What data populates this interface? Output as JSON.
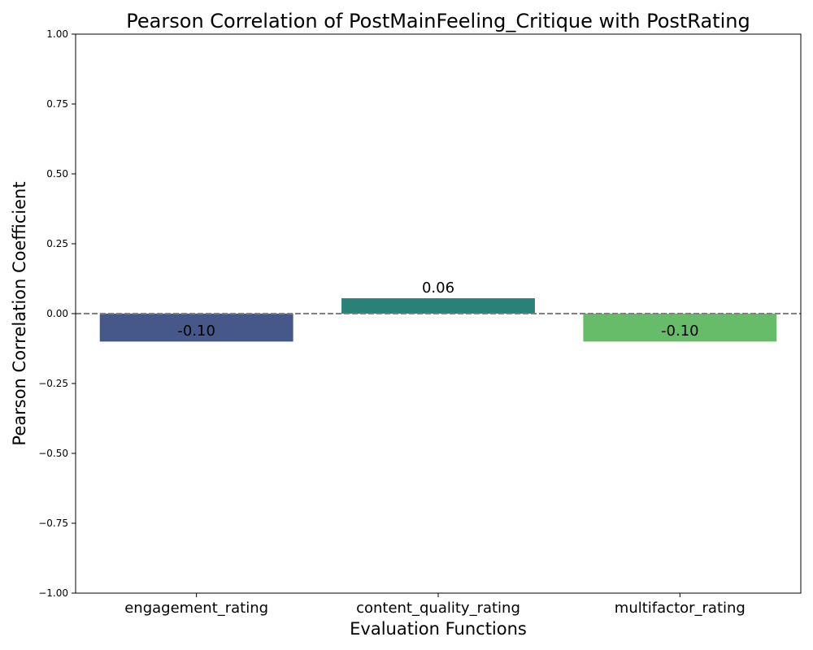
{
  "chart_data": {
    "type": "bar",
    "title": "Pearson Correlation of PostMainFeeling_Critique with PostRating",
    "xlabel": "Evaluation Functions",
    "ylabel": "Pearson Correlation Coefficient",
    "categories": [
      "engagement_rating",
      "content_quality_rating",
      "multifactor_rating"
    ],
    "values": [
      -0.1,
      0.055,
      -0.1
    ],
    "value_labels": [
      "-0.10",
      "0.06",
      "-0.10"
    ],
    "colors": [
      "#46578a",
      "#2a8178",
      "#67bc69"
    ],
    "ylim": [
      -1.0,
      1.0
    ],
    "yticks": [
      "1.00",
      "0.75",
      "0.50",
      "0.25",
      "0.00",
      "−0.25",
      "−0.50",
      "−0.75",
      "−1.00"
    ],
    "ytick_values": [
      1.0,
      0.75,
      0.5,
      0.25,
      0.0,
      -0.25,
      -0.5,
      -0.75,
      -1.0
    ],
    "reference_line": {
      "y": 0.0,
      "style": "dashed",
      "color": "#808080"
    },
    "grid": false,
    "legend": "none"
  }
}
